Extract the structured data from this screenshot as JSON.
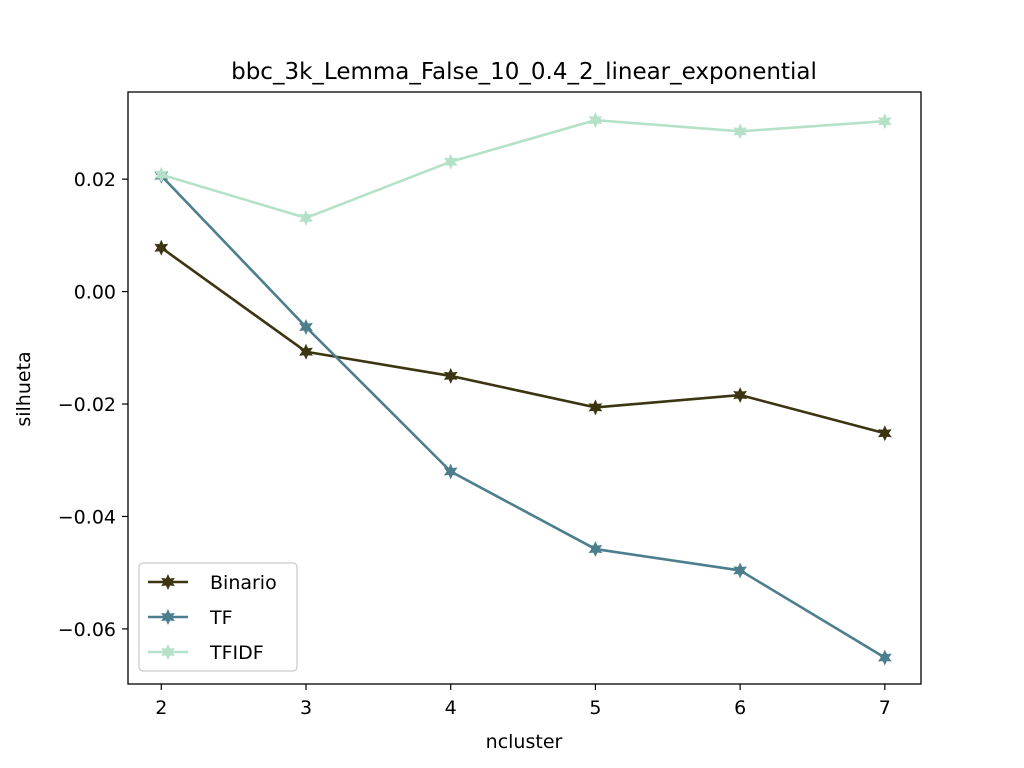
{
  "chart_data": {
    "type": "line",
    "title": "bbc_3k_Lemma_False_10_0.4_2_linear_exponential",
    "xlabel": "ncluster",
    "ylabel": "silhueta",
    "x": [
      2,
      3,
      4,
      5,
      6,
      7
    ],
    "xlim": [
      1.77,
      7.25
    ],
    "ylim": [
      -0.0698,
      0.0355
    ],
    "xticks": [
      2,
      3,
      4,
      5,
      6,
      7
    ],
    "xtick_labels": [
      "2",
      "3",
      "4",
      "5",
      "6",
      "7"
    ],
    "yticks": [
      0.02,
      0.0,
      -0.02,
      -0.04,
      -0.06
    ],
    "ytick_labels": [
      "0.02",
      "0.00",
      "−0.02",
      "−0.04",
      "−0.06"
    ],
    "grid": false,
    "legend_position": "lower-left",
    "series": [
      {
        "name": "Binario",
        "color": "#3b3511",
        "marker": "star",
        "values": [
          0.0078,
          -0.0107,
          -0.015,
          -0.0206,
          -0.0184,
          -0.0252
        ]
      },
      {
        "name": "TF",
        "color": "#4c7e8e",
        "marker": "star",
        "values": [
          0.0206,
          -0.0063,
          -0.032,
          -0.0458,
          -0.0496,
          -0.0651
        ]
      },
      {
        "name": "TFIDF",
        "color": "#b5e1c8",
        "marker": "star",
        "values": [
          0.0208,
          0.0131,
          0.0231,
          0.0305,
          0.0285,
          0.0303
        ]
      }
    ]
  }
}
